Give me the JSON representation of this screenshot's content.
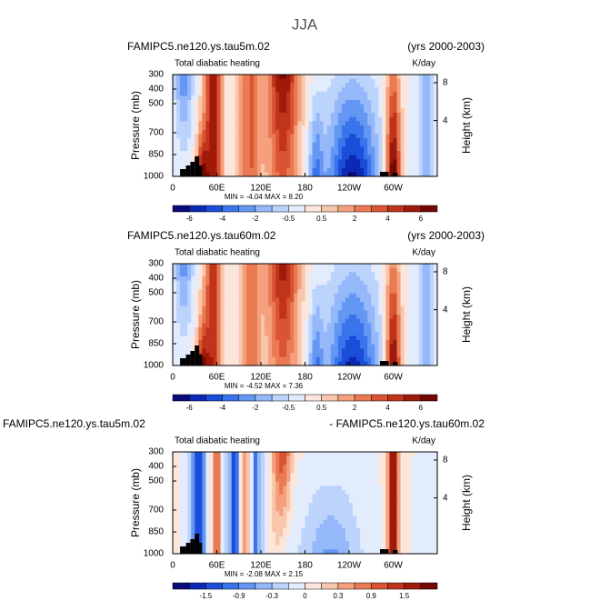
{
  "title": "JJA",
  "chart_data": [
    {
      "type": "contour",
      "title": "FAMIPC5.ne120.ys.tau5m.02",
      "title_right": "(yrs 2000-2003)",
      "subtitle": "Total diabatic heating",
      "units": "K/day",
      "ylabel": "Pressure (mb)",
      "y2label": "Height (km)",
      "xlim": [
        0,
        360
      ],
      "xticks": [
        0,
        {
          "value": 60,
          "label": "60E"
        },
        {
          "value": 120,
          "label": "120E"
        },
        180,
        {
          "value": 240,
          "label": "120W"
        },
        {
          "value": 300,
          "label": "60W"
        }
      ],
      "ylim": [
        1000,
        300
      ],
      "yticks": [
        300,
        400,
        500,
        700,
        850,
        1000
      ],
      "y2ticks": [
        8,
        4
      ],
      "stats": "MIN =   -4.04   MAX =   8.20",
      "colorbar_labels": [
        -6,
        -4,
        -2,
        -0.5,
        0.5,
        2,
        4,
        6
      ],
      "colors": [
        "#0a0a78",
        "#0c28b4",
        "#1a4ed8",
        "#3a74ec",
        "#6496f4",
        "#94b8fa",
        "#bcd4fc",
        "#e2ecfc",
        "#fce6dc",
        "#f8c6aa",
        "#f4a07c",
        "#ea7a52",
        "#d85432",
        "#c0341c",
        "#a01a0a",
        "#760804"
      ]
    },
    {
      "type": "contour",
      "title": "FAMIPC5.ne120.ys.tau60m.02",
      "title_right": "(yrs 2000-2003)",
      "subtitle": "Total diabatic heating",
      "units": "K/day",
      "ylabel": "Pressure (mb)",
      "y2label": "Height (km)",
      "xlim": [
        0,
        360
      ],
      "xticks": [
        0,
        {
          "value": 60,
          "label": "60E"
        },
        {
          "value": 120,
          "label": "120E"
        },
        180,
        {
          "value": 240,
          "label": "120W"
        },
        {
          "value": 300,
          "label": "60W"
        }
      ],
      "ylim": [
        1000,
        300
      ],
      "yticks": [
        300,
        400,
        500,
        700,
        850,
        1000
      ],
      "y2ticks": [
        8,
        4
      ],
      "stats": "MIN =   -4.52   MAX =   7.36",
      "colorbar_labels": [
        -6,
        -4,
        -2,
        -0.5,
        0.5,
        2,
        4,
        6
      ],
      "colors": [
        "#0a0a78",
        "#0c28b4",
        "#1a4ed8",
        "#3a74ec",
        "#6496f4",
        "#94b8fa",
        "#bcd4fc",
        "#e2ecfc",
        "#fce6dc",
        "#f8c6aa",
        "#f4a07c",
        "#ea7a52",
        "#d85432",
        "#c0341c",
        "#a01a0a",
        "#760804"
      ]
    },
    {
      "type": "contour",
      "title": "FAMIPC5.ne120.ys.tau5m.02",
      "title_right": "- FAMIPC5.ne120.ys.tau60m.02",
      "subtitle": "Total diabatic heating",
      "units": "K/day",
      "ylabel": "Pressure (mb)",
      "y2label": "Height (km)",
      "xlim": [
        0,
        360
      ],
      "xticks": [
        0,
        {
          "value": 60,
          "label": "60E"
        },
        {
          "value": 120,
          "label": "120E"
        },
        180,
        {
          "value": 240,
          "label": "120W"
        },
        {
          "value": 300,
          "label": "60W"
        }
      ],
      "ylim": [
        1000,
        300
      ],
      "yticks": [
        300,
        400,
        500,
        700,
        850,
        1000
      ],
      "y2ticks": [
        8,
        4
      ],
      "stats": "MIN =   -2.08   MAX =   2.15",
      "colorbar_labels": [
        -1.5,
        -0.9,
        -0.3,
        0,
        0.3,
        0.9,
        1.5
      ],
      "colors": [
        "#0a0a78",
        "#0c28b4",
        "#1a4ed8",
        "#3a74ec",
        "#6496f4",
        "#94b8fa",
        "#bcd4fc",
        "#e2ecfc",
        "#fce6dc",
        "#f8c6aa",
        "#f4a07c",
        "#ea7a52",
        "#d85432",
        "#c0341c",
        "#a01a0a",
        "#760804"
      ]
    }
  ]
}
